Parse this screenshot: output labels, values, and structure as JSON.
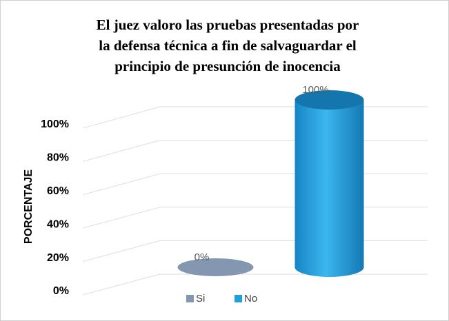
{
  "chart_data": {
    "type": "cylinder",
    "title": [
      "El juez valoro las pruebas presentadas por",
      "la defensa técnica a fin de salvaguardar el",
      "principio de presunción de inocencia"
    ],
    "y_label": "PORCENTAJE",
    "series": [
      {
        "name": "Si",
        "color": "#8497b0",
        "values": [
          0
        ],
        "value_labels": [
          "0%"
        ]
      },
      {
        "name": "No",
        "color": "#1fa0dc",
        "values": [
          100
        ],
        "value_labels": [
          "100%"
        ]
      }
    ],
    "ylim": [
      0,
      100
    ],
    "yticks": [
      {
        "value": 0,
        "label": "0%"
      },
      {
        "value": 20,
        "label": "20%"
      },
      {
        "value": 40,
        "label": "40%"
      },
      {
        "value": 60,
        "label": "60%"
      },
      {
        "value": 80,
        "label": "80%"
      },
      {
        "value": 100,
        "label": "100%"
      }
    ],
    "grid": true
  }
}
